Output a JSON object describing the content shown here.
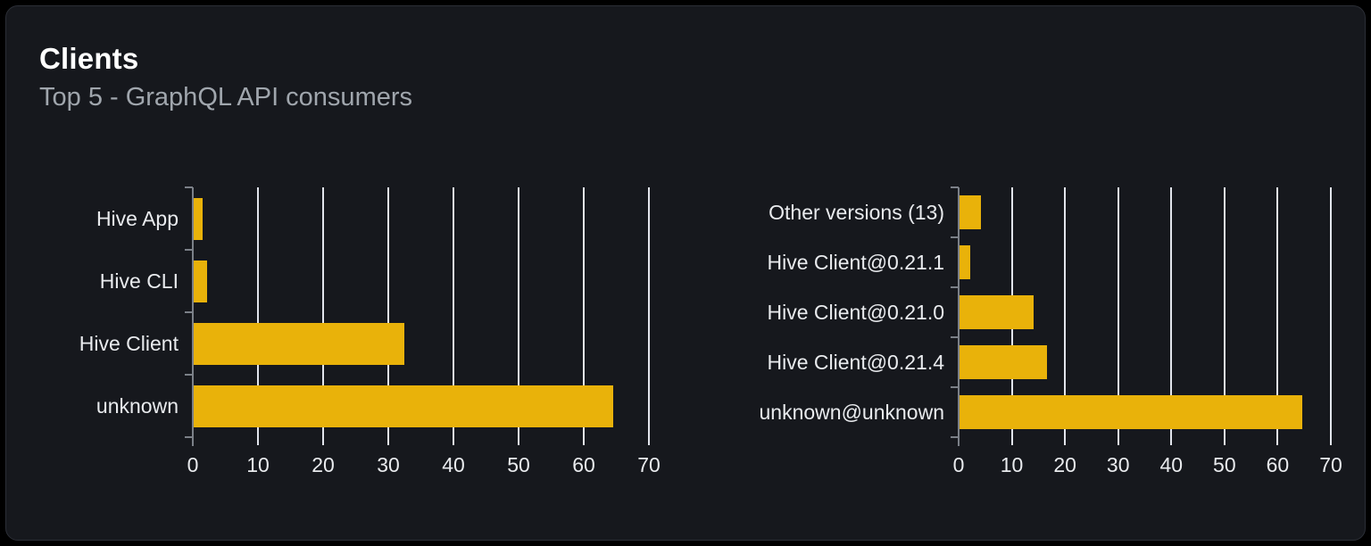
{
  "header": {
    "title": "Clients",
    "subtitle": "Top 5 - GraphQL API consumers"
  },
  "colors": {
    "page_bg": "#000000",
    "card_bg": "#16181d",
    "card_border": "#2b2e36",
    "bar": "#e9b20a",
    "gridline": "#e2e5ec",
    "axis": "#7b8088",
    "title_text": "#ffffff",
    "subtitle_text": "#a0a6ad",
    "tick_text": "#e9ebee"
  },
  "chart_data": [
    {
      "type": "bar",
      "orientation": "horizontal",
      "name": "clients-by-name",
      "categories": [
        "Hive App",
        "Hive CLI",
        "Hive Client",
        "unknown"
      ],
      "values": [
        1.4,
        2,
        32.3,
        64.4
      ],
      "xlim": [
        0,
        70
      ],
      "xticks": [
        0,
        10,
        20,
        30,
        40,
        50,
        60,
        70
      ],
      "grid": true,
      "legend": false,
      "bar_color": "#e9b20a"
    },
    {
      "type": "bar",
      "orientation": "horizontal",
      "name": "clients-by-version",
      "categories": [
        "Other versions (13)",
        "Hive Client@0.21.1",
        "Hive Client@0.21.0",
        "Hive Client@0.21.4",
        "unknown@unknown"
      ],
      "values": [
        4,
        2,
        13.9,
        16.5,
        64.5
      ],
      "xlim": [
        0,
        70
      ],
      "xticks": [
        0,
        10,
        20,
        30,
        40,
        50,
        60,
        70
      ],
      "grid": true,
      "legend": false,
      "bar_color": "#e9b20a"
    }
  ]
}
